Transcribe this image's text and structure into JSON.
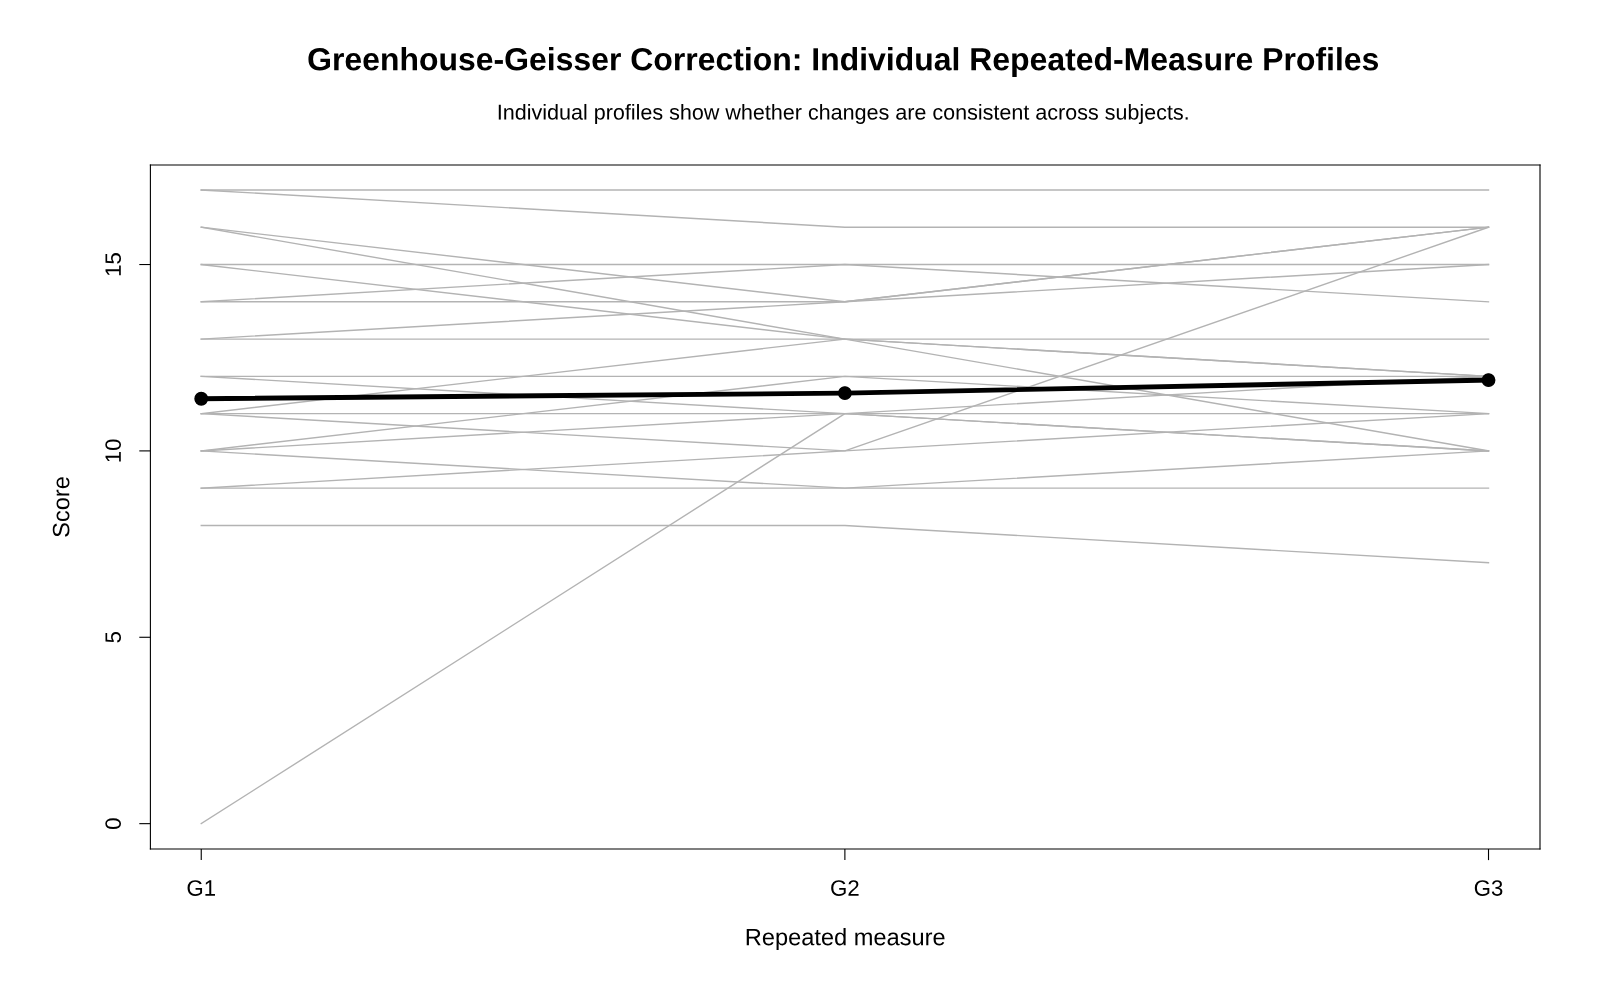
{
  "chart_data": {
    "type": "line",
    "title": "Greenhouse-Geisser Correction: Individual Repeated-Measure Profiles",
    "subtitle": "Individual profiles show whether changes are consistent across subjects.",
    "xlabel": "Repeated measure",
    "ylabel": "Score",
    "categories": [
      "G1",
      "G2",
      "G3"
    ],
    "ylim": [
      -0.68,
      17.67
    ],
    "yticks": [
      0,
      5,
      10,
      15
    ],
    "grid": false,
    "legend": false,
    "series": [
      {
        "color": "#b3b3b3",
        "values": [
          17,
          17,
          17
        ]
      },
      {
        "color": "#b3b3b3",
        "values": [
          17,
          16,
          16
        ]
      },
      {
        "color": "#b3b3b3",
        "values": [
          16,
          14,
          16
        ]
      },
      {
        "color": "#b3b3b3",
        "values": [
          16,
          13,
          12
        ]
      },
      {
        "color": "#b3b3b3",
        "values": [
          15,
          15,
          15
        ]
      },
      {
        "color": "#b3b3b3",
        "values": [
          15,
          13,
          10
        ]
      },
      {
        "color": "#b3b3b3",
        "values": [
          14,
          14,
          15
        ]
      },
      {
        "color": "#b3b3b3",
        "values": [
          14,
          15,
          14
        ]
      },
      {
        "color": "#b3b3b3",
        "values": [
          13,
          14,
          16
        ]
      },
      {
        "color": "#b3b3b3",
        "values": [
          13,
          13,
          13
        ]
      },
      {
        "color": "#b3b3b3",
        "values": [
          12,
          12,
          12
        ]
      },
      {
        "color": "#b3b3b3",
        "values": [
          12,
          11,
          10
        ]
      },
      {
        "color": "#b3b3b3",
        "values": [
          11,
          13,
          12
        ]
      },
      {
        "color": "#b3b3b3",
        "values": [
          11,
          10,
          16
        ]
      },
      {
        "color": "#b3b3b3",
        "values": [
          10,
          12,
          11
        ]
      },
      {
        "color": "#b3b3b3",
        "values": [
          10,
          11,
          11
        ]
      },
      {
        "color": "#b3b3b3",
        "values": [
          10,
          9,
          10
        ]
      },
      {
        "color": "#b3b3b3",
        "values": [
          9,
          10,
          11
        ]
      },
      {
        "color": "#b3b3b3",
        "values": [
          9,
          9,
          9
        ]
      },
      {
        "color": "#b3b3b3",
        "values": [
          8,
          8,
          7
        ]
      },
      {
        "color": "#b3b3b3",
        "values": [
          0,
          11,
          12
        ]
      },
      {
        "color": "#b3b3b3",
        "values": [
          11,
          11,
          10
        ]
      },
      {
        "color": "#000000",
        "values": [
          11.4,
          11.55,
          11.9
        ],
        "marker": "circle"
      }
    ]
  }
}
